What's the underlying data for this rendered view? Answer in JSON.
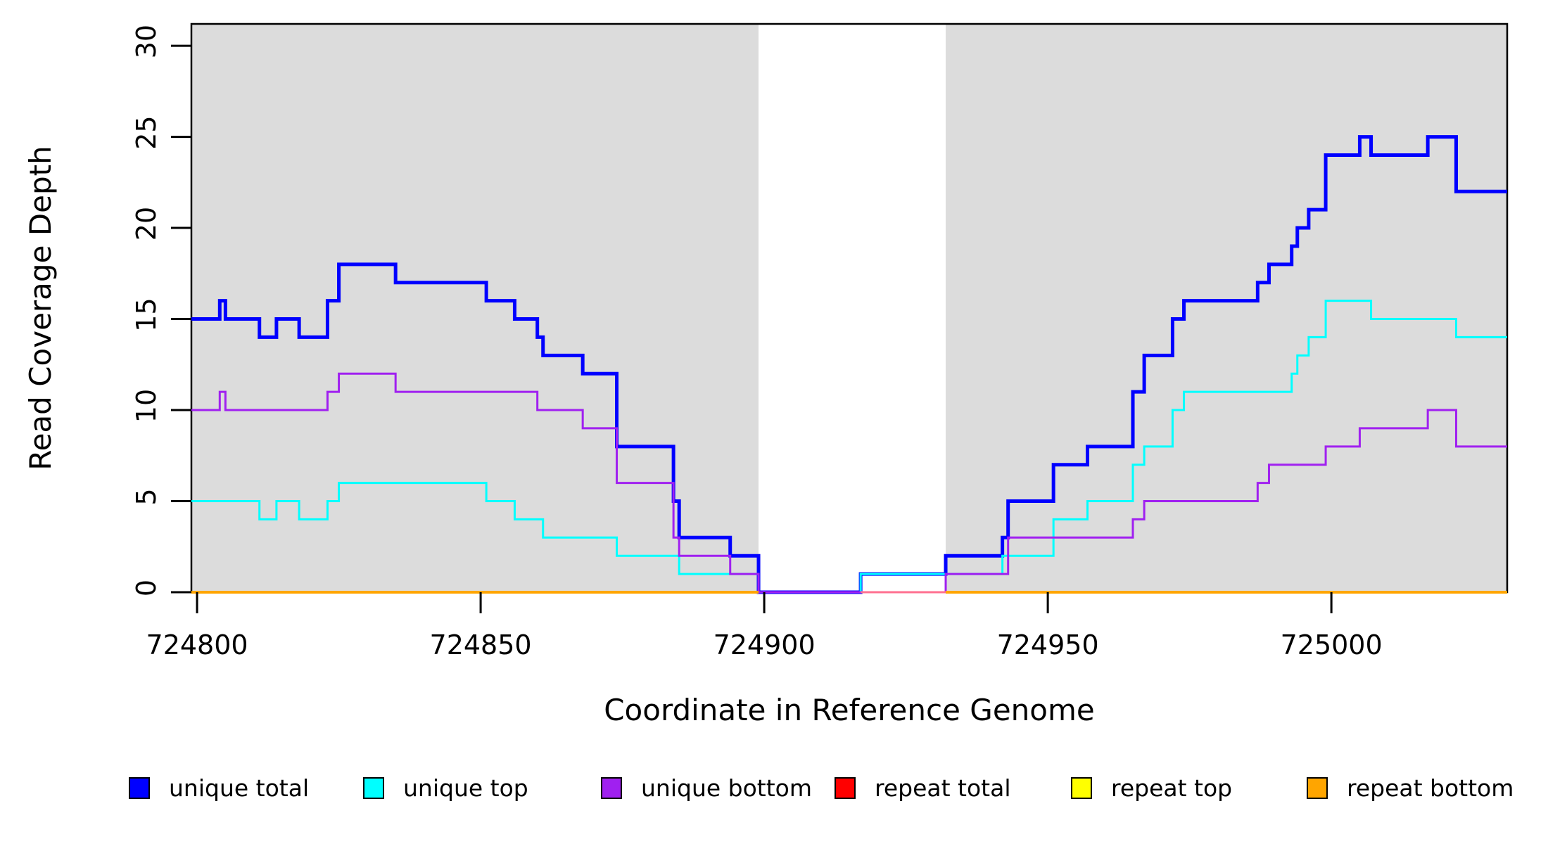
{
  "chart_data": {
    "type": "line",
    "subtype": "step-post-coverage",
    "title": "",
    "xlabel": "Coordinate in Reference Genome",
    "ylabel": "Read Coverage Depth",
    "xlim": [
      724799,
      725031
    ],
    "ylim": [
      0,
      31.2
    ],
    "x_ticks": [
      724800,
      724850,
      724900,
      724950,
      725000
    ],
    "y_ticks": [
      0,
      5,
      10,
      15,
      20,
      25,
      30
    ],
    "grid": false,
    "legend_position": "bottom",
    "shaded_regions": [
      {
        "from": 724799,
        "to": 724899,
        "color": "#dcdcdc"
      },
      {
        "from": 724932,
        "to": 725031,
        "color": "#dcdcdc"
      }
    ],
    "gap_region": {
      "from": 724899,
      "to": 724932,
      "color": "#ffffff"
    },
    "series": [
      {
        "id": "unique-total",
        "label": "unique total",
        "color": "#0000ff",
        "stroke_width": 5,
        "mode": "steps",
        "steps": [
          [
            724799,
            15
          ],
          [
            724804,
            16
          ],
          [
            724805,
            15
          ],
          [
            724811,
            14
          ],
          [
            724814,
            15
          ],
          [
            724818,
            14
          ],
          [
            724823,
            16
          ],
          [
            724825,
            18
          ],
          [
            724835,
            17
          ],
          [
            724851,
            16
          ],
          [
            724856,
            15
          ],
          [
            724860,
            14
          ],
          [
            724861,
            13
          ],
          [
            724868,
            12
          ],
          [
            724874,
            8
          ],
          [
            724884,
            5
          ],
          [
            724885,
            3
          ],
          [
            724894,
            2
          ],
          [
            724899,
            0
          ],
          [
            724917,
            1
          ],
          [
            724932,
            2
          ],
          [
            724942,
            3
          ],
          [
            724943,
            5
          ],
          [
            724951,
            7
          ],
          [
            724957,
            8
          ],
          [
            724965,
            11
          ],
          [
            724967,
            13
          ],
          [
            724972,
            15
          ],
          [
            724974,
            16
          ],
          [
            724987,
            17
          ],
          [
            724989,
            18
          ],
          [
            724993,
            19
          ],
          [
            724994,
            20
          ],
          [
            724996,
            21
          ],
          [
            724999,
            24
          ],
          [
            725005,
            25
          ],
          [
            725007,
            24
          ],
          [
            725017,
            25
          ],
          [
            725022,
            22
          ]
        ]
      },
      {
        "id": "unique-top",
        "label": "unique top",
        "color": "#00ffff",
        "stroke_width": 3,
        "mode": "steps",
        "steps": [
          [
            724799,
            5
          ],
          [
            724811,
            4
          ],
          [
            724814,
            5
          ],
          [
            724818,
            4
          ],
          [
            724823,
            5
          ],
          [
            724825,
            6
          ],
          [
            724851,
            5
          ],
          [
            724856,
            4
          ],
          [
            724861,
            3
          ],
          [
            724874,
            2
          ],
          [
            724885,
            1
          ],
          [
            724899,
            0
          ],
          [
            724917,
            1
          ],
          [
            724942,
            2
          ],
          [
            724951,
            4
          ],
          [
            724957,
            5
          ],
          [
            724965,
            7
          ],
          [
            724967,
            8
          ],
          [
            724972,
            10
          ],
          [
            724974,
            11
          ],
          [
            724993,
            12
          ],
          [
            724994,
            13
          ],
          [
            724996,
            14
          ],
          [
            724999,
            16
          ],
          [
            725007,
            15
          ],
          [
            725022,
            14
          ]
        ]
      },
      {
        "id": "unique-bottom",
        "label": "unique bottom",
        "color": "#a020f0",
        "stroke_width": 3,
        "mode": "steps",
        "steps": [
          [
            724799,
            10
          ],
          [
            724804,
            11
          ],
          [
            724805,
            10
          ],
          [
            724823,
            11
          ],
          [
            724825,
            12
          ],
          [
            724835,
            11
          ],
          [
            724860,
            10
          ],
          [
            724868,
            9
          ],
          [
            724874,
            6
          ],
          [
            724884,
            3
          ],
          [
            724885,
            2
          ],
          [
            724894,
            1
          ],
          [
            724899,
            0
          ],
          [
            724932,
            1
          ],
          [
            724943,
            3
          ],
          [
            724965,
            4
          ],
          [
            724967,
            5
          ],
          [
            724987,
            6
          ],
          [
            724989,
            7
          ],
          [
            724999,
            8
          ],
          [
            725005,
            9
          ],
          [
            725017,
            10
          ],
          [
            725022,
            8
          ]
        ]
      },
      {
        "id": "repeat-total",
        "label": "repeat total",
        "color": "#ff0000",
        "render_color": "#ff7090",
        "stroke_width": 3,
        "mode": "segments",
        "value": 0,
        "segments": [
          [
            724917,
            724932
          ]
        ]
      },
      {
        "id": "repeat-top",
        "label": "repeat top",
        "color": "#ffff00",
        "stroke_width": 3,
        "mode": "segments",
        "value": 0,
        "segments": []
      },
      {
        "id": "repeat-bottom",
        "label": "repeat bottom",
        "color": "#ffa500",
        "stroke_width": 4,
        "mode": "segments",
        "value": 0,
        "segments": [
          [
            724799,
            724899
          ],
          [
            724932,
            725031
          ]
        ]
      }
    ]
  },
  "legend": {
    "labels": [
      "unique total",
      "unique top",
      "unique bottom",
      "repeat total",
      "repeat top",
      "repeat bottom"
    ],
    "colors": [
      "#0000ff",
      "#00ffff",
      "#a020f0",
      "#ff0000",
      "#ffff00",
      "#ffa500"
    ]
  }
}
